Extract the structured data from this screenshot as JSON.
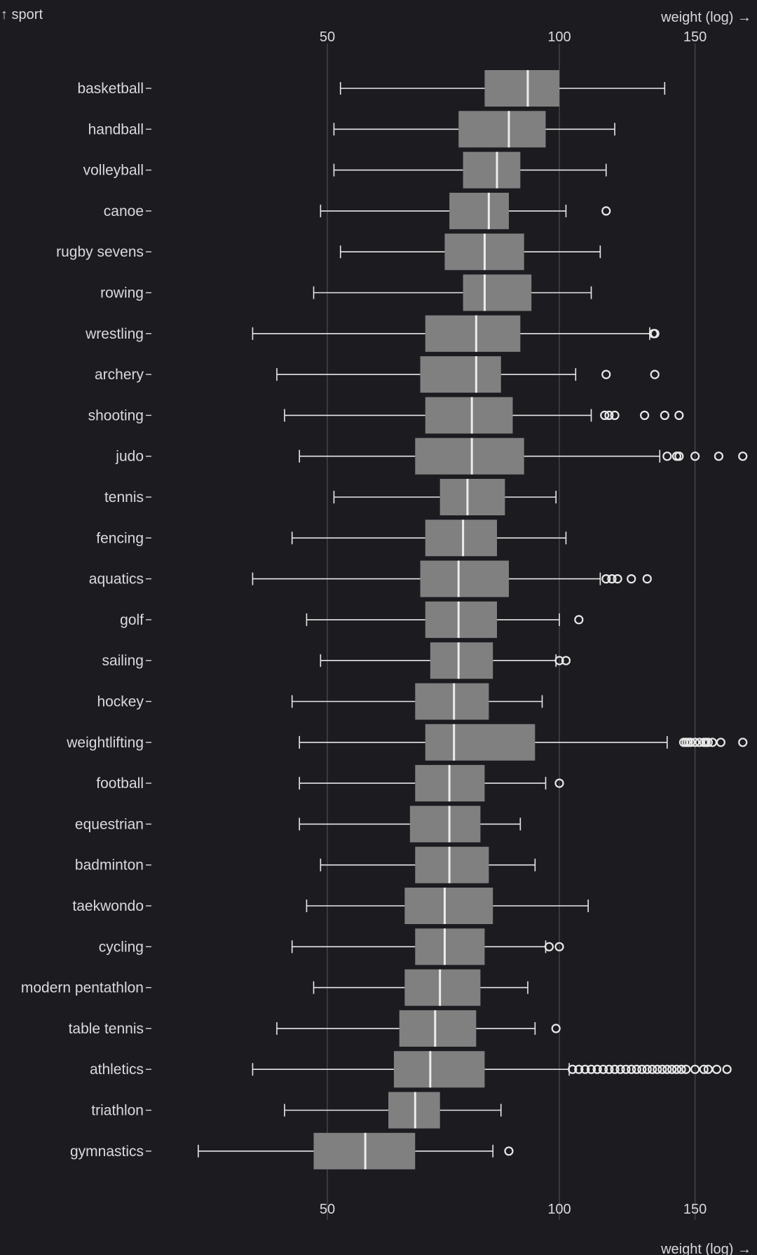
{
  "chart_data": {
    "type": "box",
    "y_axis_label": "↑ sport",
    "x_axis_label": "weight (log) →",
    "x_scale": "log",
    "x_ticks": [
      50,
      100,
      150
    ],
    "xlim": [
      30,
      180
    ],
    "grid": "vertical",
    "colors": {
      "background": "#1c1b20",
      "box": "#808080",
      "whisker": "#e8e8e8",
      "median": "#ececec",
      "text": "#d9d9de",
      "grid": "#55555c"
    },
    "categories": [
      "basketball",
      "handball",
      "volleyball",
      "canoe",
      "rugby sevens",
      "rowing",
      "wrestling",
      "archery",
      "shooting",
      "judo",
      "tennis",
      "fencing",
      "aquatics",
      "golf",
      "sailing",
      "hockey",
      "weightlifting",
      "football",
      "equestrian",
      "badminton",
      "taekwondo",
      "cycling",
      "modern pentathlon",
      "table tennis",
      "athletics",
      "triathlon",
      "gymnastics"
    ],
    "boxes": [
      {
        "sport": "basketball",
        "whisker_low": 52,
        "q1": 80,
        "median": 91,
        "q3": 100,
        "whisker_high": 137,
        "outliers": []
      },
      {
        "sport": "handball",
        "whisker_low": 51,
        "q1": 74,
        "median": 86,
        "q3": 96,
        "whisker_high": 118,
        "outliers": []
      },
      {
        "sport": "volleyball",
        "whisker_low": 51,
        "q1": 75,
        "median": 83,
        "q3": 89,
        "whisker_high": 115,
        "outliers": []
      },
      {
        "sport": "canoe",
        "whisker_low": 49,
        "q1": 72,
        "median": 81,
        "q3": 86,
        "whisker_high": 102,
        "outliers": [
          115
        ]
      },
      {
        "sport": "rugby sevens",
        "whisker_low": 52,
        "q1": 71,
        "median": 80,
        "q3": 90,
        "whisker_high": 113,
        "outliers": []
      },
      {
        "sport": "rowing",
        "whisker_low": 48,
        "q1": 75,
        "median": 80,
        "q3": 92,
        "whisker_high": 110,
        "outliers": []
      },
      {
        "sport": "wrestling",
        "whisker_low": 40,
        "q1": 67,
        "median": 78,
        "q3": 89,
        "whisker_high": 131,
        "outliers": [
          132.5,
          133
        ]
      },
      {
        "sport": "archery",
        "whisker_low": 43,
        "q1": 66,
        "median": 78,
        "q3": 84,
        "whisker_high": 105,
        "outliers": [
          115,
          133
        ]
      },
      {
        "sport": "shooting",
        "whisker_low": 44,
        "q1": 67,
        "median": 77,
        "q3": 87,
        "whisker_high": 110,
        "outliers": [
          114.5,
          116,
          118,
          129,
          137,
          143
        ]
      },
      {
        "sport": "judo",
        "whisker_low": 46,
        "q1": 65,
        "median": 77,
        "q3": 90,
        "whisker_high": 135,
        "outliers": [
          138,
          142,
          143,
          150,
          161,
          173
        ]
      },
      {
        "sport": "tennis",
        "whisker_low": 51,
        "q1": 70,
        "median": 76,
        "q3": 85,
        "whisker_high": 99,
        "outliers": []
      },
      {
        "sport": "fencing",
        "whisker_low": 45,
        "q1": 67,
        "median": 75,
        "q3": 83,
        "whisker_high": 102,
        "outliers": []
      },
      {
        "sport": "aquatics",
        "whisker_low": 40,
        "q1": 66,
        "median": 74,
        "q3": 86,
        "whisker_high": 113,
        "outliers": [
          115,
          117,
          119,
          124,
          130
        ]
      },
      {
        "sport": "golf",
        "whisker_low": 47,
        "q1": 67,
        "median": 74,
        "q3": 83,
        "whisker_high": 100,
        "outliers": [
          106
        ]
      },
      {
        "sport": "sailing",
        "whisker_low": 49,
        "q1": 68,
        "median": 74,
        "q3": 82,
        "whisker_high": 99,
        "outliers": [
          100,
          102
        ]
      },
      {
        "sport": "hockey",
        "whisker_low": 45,
        "q1": 65,
        "median": 73,
        "q3": 81,
        "whisker_high": 95,
        "outliers": []
      },
      {
        "sport": "weightlifting",
        "whisker_low": 46,
        "q1": 67,
        "median": 73,
        "q3": 93,
        "whisker_high": 138,
        "outliers": [
          145,
          146,
          147,
          148,
          150,
          152,
          154,
          155,
          156,
          158,
          162,
          173
        ]
      },
      {
        "sport": "football",
        "whisker_low": 46,
        "q1": 65,
        "median": 72,
        "q3": 80,
        "whisker_high": 96,
        "outliers": [
          100
        ]
      },
      {
        "sport": "equestrian",
        "whisker_low": 46,
        "q1": 64,
        "median": 72,
        "q3": 79,
        "whisker_high": 89,
        "outliers": []
      },
      {
        "sport": "badminton",
        "whisker_low": 49,
        "q1": 65,
        "median": 72,
        "q3": 81,
        "whisker_high": 93,
        "outliers": []
      },
      {
        "sport": "taekwondo",
        "whisker_low": 47,
        "q1": 63,
        "median": 71,
        "q3": 82,
        "whisker_high": 109,
        "outliers": []
      },
      {
        "sport": "cycling",
        "whisker_low": 45,
        "q1": 65,
        "median": 71,
        "q3": 80,
        "whisker_high": 96,
        "outliers": [
          97,
          100
        ]
      },
      {
        "sport": "modern pentathlon",
        "whisker_low": 48,
        "q1": 63,
        "median": 70,
        "q3": 79,
        "whisker_high": 91,
        "outliers": []
      },
      {
        "sport": "table tennis",
        "whisker_low": 43,
        "q1": 62,
        "median": 69,
        "q3": 78,
        "whisker_high": 93,
        "outliers": [
          99
        ]
      },
      {
        "sport": "athletics",
        "whisker_low": 40,
        "q1": 61,
        "median": 68,
        "q3": 80,
        "whisker_high": 103,
        "outliers": [
          104,
          106,
          108,
          110,
          112,
          114,
          116,
          118,
          120,
          122,
          124,
          126,
          128,
          130,
          132,
          134,
          136,
          138,
          140,
          142,
          144,
          146,
          150,
          154,
          156,
          160,
          165
        ]
      },
      {
        "sport": "triathlon",
        "whisker_low": 44,
        "q1": 60,
        "median": 65,
        "q3": 70,
        "whisker_high": 84,
        "outliers": []
      },
      {
        "sport": "gymnastics",
        "whisker_low": 34,
        "q1": 48,
        "median": 56,
        "q3": 65,
        "whisker_high": 82,
        "outliers": [
          86
        ]
      }
    ]
  }
}
